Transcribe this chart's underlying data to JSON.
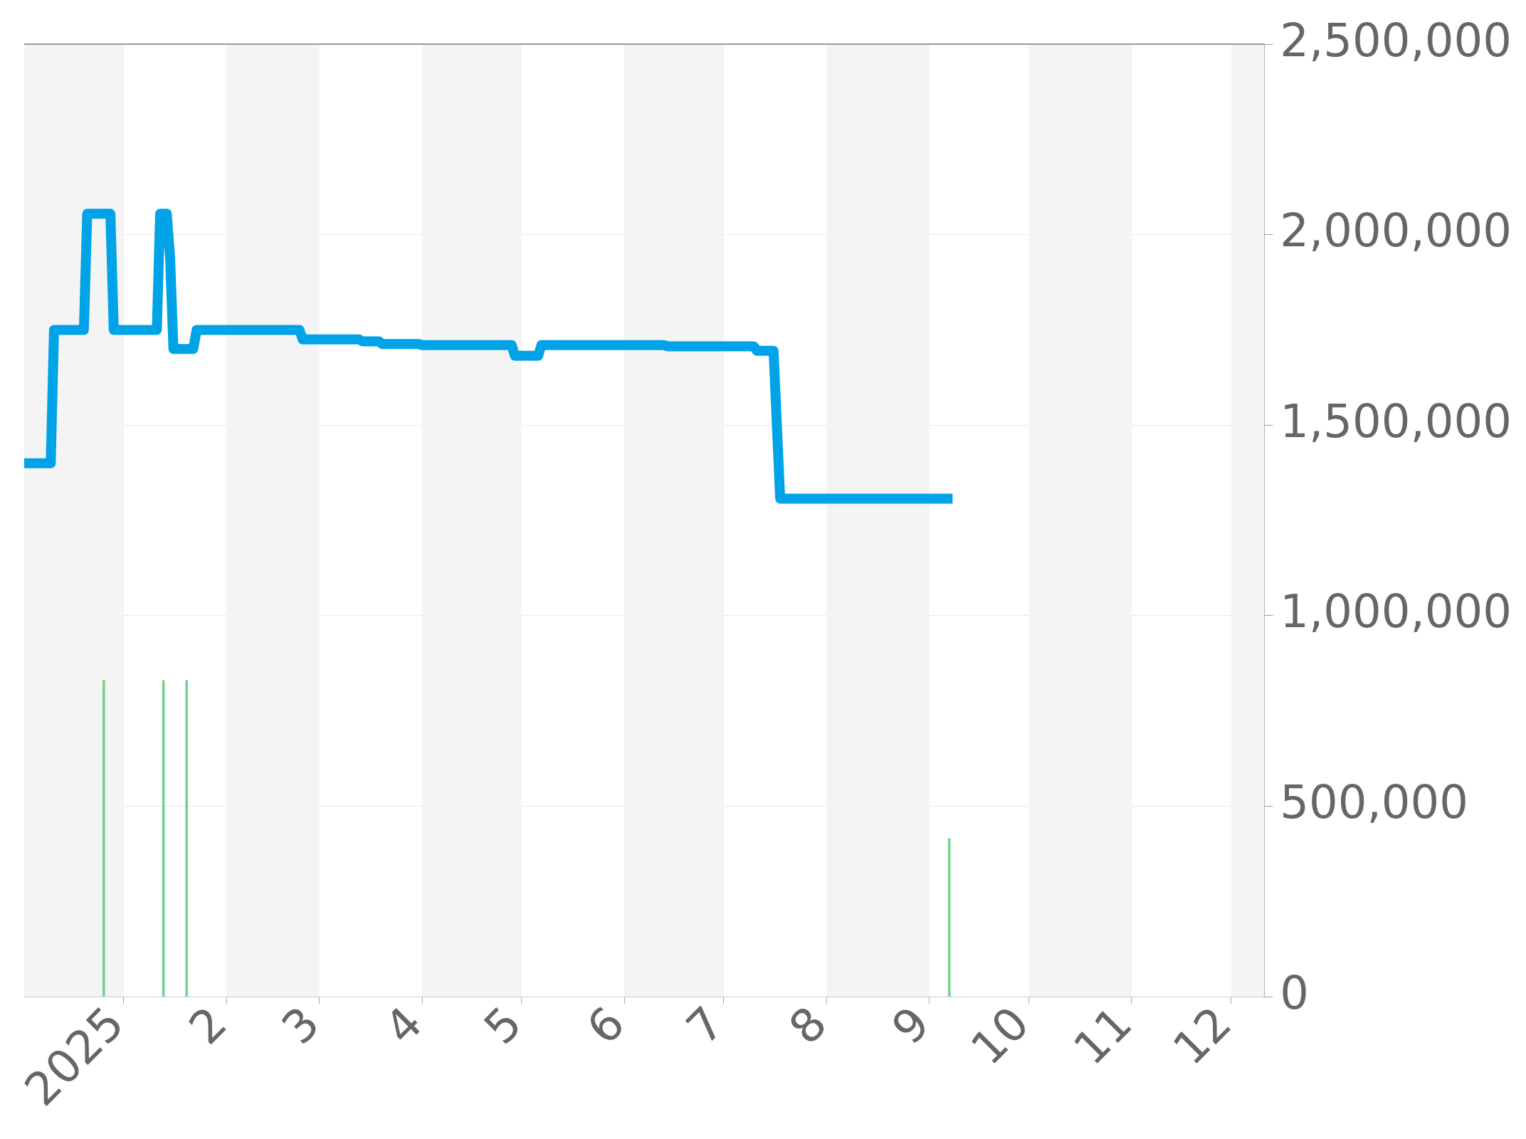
{
  "chart_data": {
    "type": "line",
    "xlim": [
      "2024-12-02",
      "2025-12-11"
    ],
    "xticks": [
      {
        "value": "2025-01-01",
        "label": "2025"
      },
      {
        "value": "2025-02-01",
        "label": "2"
      },
      {
        "value": "2025-03-01",
        "label": "3"
      },
      {
        "value": "2025-04-01",
        "label": "4"
      },
      {
        "value": "2025-05-01",
        "label": "5"
      },
      {
        "value": "2025-06-01",
        "label": "6"
      },
      {
        "value": "2025-07-01",
        "label": "7"
      },
      {
        "value": "2025-08-01",
        "label": "8"
      },
      {
        "value": "2025-09-01",
        "label": "9"
      },
      {
        "value": "2025-10-01",
        "label": "10"
      },
      {
        "value": "2025-11-01",
        "label": "11"
      },
      {
        "value": "2025-12-01",
        "label": "12"
      }
    ],
    "ylim": [
      0,
      2500000
    ],
    "yticks": [
      {
        "value": 0,
        "label": "0"
      },
      {
        "value": 500000,
        "label": "500,000"
      },
      {
        "value": 1000000,
        "label": "1,000,000"
      },
      {
        "value": 1500000,
        "label": "1,500,000"
      },
      {
        "value": 2000000,
        "label": "2,000,000"
      },
      {
        "value": 2500000,
        "label": "2,500,000"
      }
    ],
    "grid": "y",
    "bands": [
      {
        "axis": "x",
        "from": "2024-12-02",
        "to": "2025-01-01",
        "color": "#f4f4f4"
      },
      {
        "axis": "x",
        "from": "2025-02-01",
        "to": "2025-03-01",
        "color": "#f4f4f4"
      },
      {
        "axis": "x",
        "from": "2025-04-01",
        "to": "2025-05-01",
        "color": "#f4f4f4"
      },
      {
        "axis": "x",
        "from": "2025-06-01",
        "to": "2025-07-01",
        "color": "#f4f4f4"
      },
      {
        "axis": "x",
        "from": "2025-08-01",
        "to": "2025-09-01",
        "color": "#f4f4f4"
      },
      {
        "axis": "x",
        "from": "2025-10-01",
        "to": "2025-11-01",
        "color": "#f4f4f4"
      },
      {
        "axis": "x",
        "from": "2025-12-01",
        "to": "2025-12-11",
        "color": "#f4f4f4"
      }
    ],
    "series": [
      {
        "type": "bar",
        "color": "#77d18f",
        "x": [
          "2024-12-26",
          "2025-01-13",
          "2025-01-20",
          "2025-09-07"
        ],
        "values": [
          830000,
          830000,
          830000,
          415000
        ]
      },
      {
        "color": "#00a3e8",
        "x": [
          "2024-12-02",
          "2024-12-10",
          "2024-12-11",
          "2024-12-20",
          "2024-12-21",
          "2024-12-28",
          "2024-12-29",
          "2025-01-11",
          "2025-01-12",
          "2025-01-14",
          "2025-01-15",
          "2025-01-16",
          "2025-01-22",
          "2025-01-23",
          "2025-02-23",
          "2025-02-24",
          "2025-03-13",
          "2025-03-14",
          "2025-03-19",
          "2025-03-20",
          "2025-03-31",
          "2025-04-01",
          "2025-04-28",
          "2025-04-29",
          "2025-05-06",
          "2025-05-07",
          "2025-06-13",
          "2025-06-14",
          "2025-07-10",
          "2025-07-11",
          "2025-07-16",
          "2025-07-18",
          "2025-09-08"
        ],
        "values": [
          1400000,
          1400000,
          1750000,
          1750000,
          2055000,
          2055000,
          1750000,
          1750000,
          2055000,
          2055000,
          1940000,
          1700000,
          1700000,
          1750000,
          1750000,
          1725000,
          1725000,
          1720000,
          1720000,
          1713000,
          1713000,
          1710000,
          1710000,
          1682000,
          1682000,
          1710000,
          1710000,
          1707000,
          1707000,
          1695000,
          1695000,
          1307000,
          1307000
        ]
      }
    ]
  }
}
